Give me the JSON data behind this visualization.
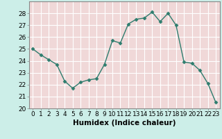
{
  "x": [
    0,
    1,
    2,
    3,
    4,
    5,
    6,
    7,
    8,
    9,
    10,
    11,
    12,
    13,
    14,
    15,
    16,
    17,
    18,
    19,
    20,
    21,
    22,
    23
  ],
  "y": [
    25.0,
    24.5,
    24.1,
    23.7,
    22.3,
    21.7,
    22.2,
    22.4,
    22.5,
    23.7,
    25.7,
    25.5,
    27.1,
    27.5,
    27.6,
    28.1,
    27.3,
    28.0,
    27.0,
    23.9,
    23.8,
    23.2,
    22.1,
    20.5
  ],
  "line_color": "#2e7d6e",
  "marker": "D",
  "marker_size": 2.5,
  "linewidth": 1.0,
  "xlabel": "Humidex (Indice chaleur)",
  "xlim": [
    -0.5,
    23.5
  ],
  "ylim": [
    20,
    29
  ],
  "yticks": [
    20,
    21,
    22,
    23,
    24,
    25,
    26,
    27,
    28
  ],
  "xticks": [
    0,
    1,
    2,
    3,
    4,
    5,
    6,
    7,
    8,
    9,
    10,
    11,
    12,
    13,
    14,
    15,
    16,
    17,
    18,
    19,
    20,
    21,
    22,
    23
  ],
  "outer_bg": "#cceee8",
  "plot_bg": "#f0d8d8",
  "grid_color": "#ffffff",
  "tick_labelsize": 6.5,
  "xlabel_fontsize": 7.5,
  "spine_color": "#888888"
}
